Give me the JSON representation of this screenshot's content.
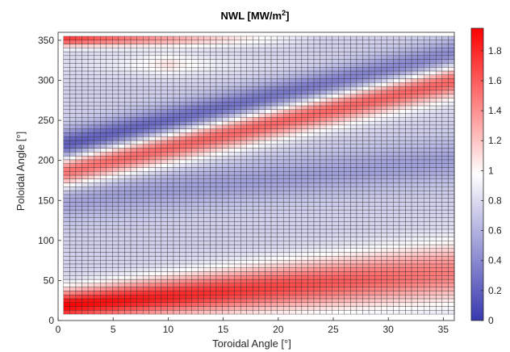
{
  "chart_data": {
    "type": "heatmap",
    "title": {
      "main": "NWL [MW/m",
      "superscript": "2",
      "close": "]"
    },
    "xlabel": "Toroidal Angle [°]",
    "ylabel": "Poloidal Angle [°]",
    "xlim": [
      0,
      36
    ],
    "ylim": [
      0,
      360
    ],
    "xticks": [
      0,
      5,
      10,
      15,
      20,
      25,
      30,
      35
    ],
    "yticks": [
      0,
      50,
      100,
      150,
      200,
      250,
      300,
      350
    ],
    "colorbar": {
      "min": 0,
      "max": 1.95,
      "ticks": [
        "0",
        "0.2",
        "0.4",
        "0.6",
        "0.8",
        "1",
        "1.2",
        "1.4",
        "1.6",
        "1.8"
      ],
      "colormap": [
        "#3838b0",
        "#ffffff",
        "#ff0000"
      ]
    },
    "grid_cells": {
      "toroidal": 64,
      "poloidal": 72
    },
    "data_extent": {
      "toroidal": [
        0.5,
        36
      ],
      "poloidal": [
        8,
        355
      ]
    },
    "bands": [
      {
        "name": "low-poloidal hot band",
        "poloidal_center_at_0": 18,
        "poloidal_center_at_36": 60,
        "peak_value": 1.9
      },
      {
        "name": "helical hot band",
        "poloidal_center_at_0": 185,
        "poloidal_center_at_36": 300,
        "peak_value": 1.6
      },
      {
        "name": "top hot band",
        "poloidal_center_at_0": 352,
        "poloidal_center_at_36": 352,
        "peak_value": 1.75
      },
      {
        "name": "helical cold band",
        "poloidal_center_at_0": 215,
        "poloidal_center_at_36": 330,
        "min_value": 0.1
      },
      {
        "name": "mid cold band",
        "poloidal_center_at_0": 150,
        "poloidal_center_at_36": 200,
        "min_value": 0.55
      }
    ]
  }
}
